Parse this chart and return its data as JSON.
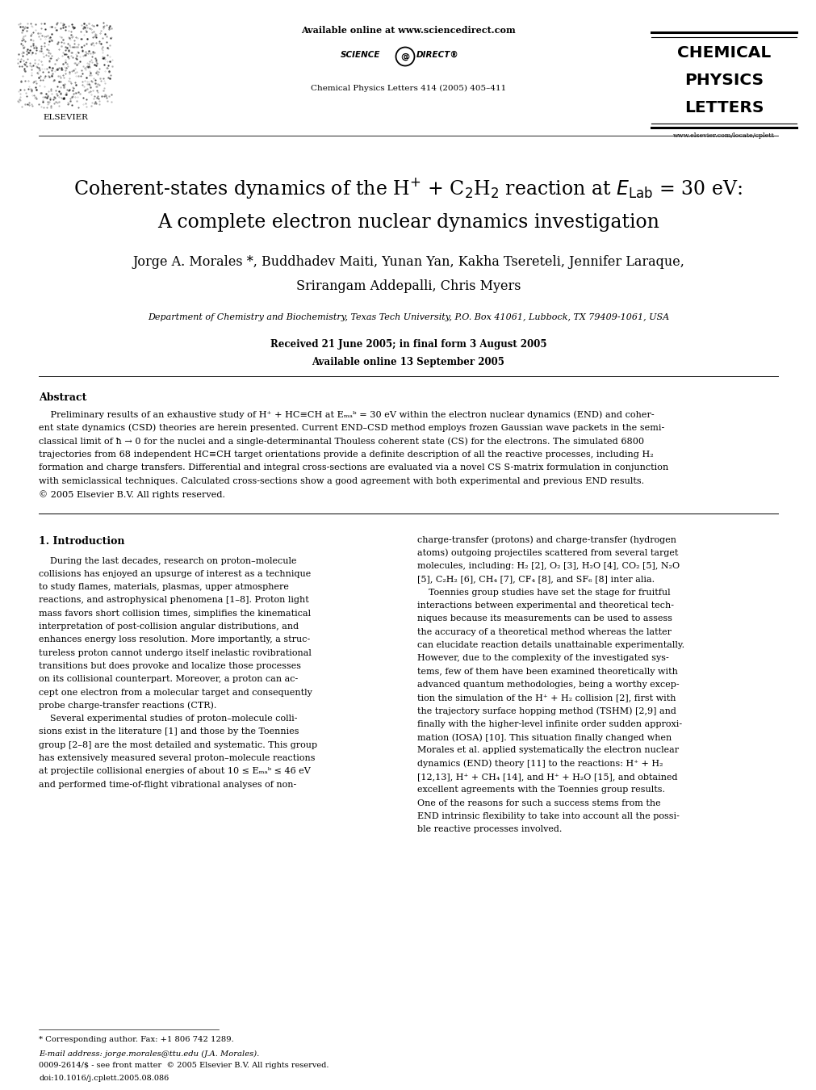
{
  "bg_color": "#ffffff",
  "page_width": 9.92,
  "page_height": 13.23,
  "header_available": "Available online at www.sciencedirect.com",
  "header_scidir": "SCIENCE   DIRECT®",
  "journal_lines": [
    "CHEMICAL",
    "PHYSICS",
    "LETTERS"
  ],
  "journal_info": "Chemical Physics Letters 414 (2005) 405–411",
  "website": "www.elsevier.com/locate/cplett",
  "title_line1": "Coherent-states dynamics of the H$^{+}$ + C$_2$H$_2$ reaction at $E_{\\mathrm{Lab}}$ = 30 eV:",
  "title_line2": "A complete electron nuclear dynamics investigation",
  "authors": "Jorge A. Morales *, Buddhadev Maiti, Yunan Yan, Kakha Tsereteli, Jennifer Laraque,",
  "authors2": "Srirangam Addepalli, Chris Myers",
  "affiliation": "Department of Chemistry and Biochemistry, Texas Tech University, P.O. Box 41061, Lubbock, TX 79409-1061, USA",
  "received": "Received 21 June 2005; in final form 3 August 2005",
  "available_online": "Available online 13 September 2005",
  "abstract_title": "Abstract",
  "abstract_para": "    Preliminary results of an exhaustive study of H⁺ + HC≡CH at Eₘₐᵇ = 30 eV within the electron nuclear dynamics (END) and coherent state dynamics (CSD) theories are herein presented. Current END–CSD method employs frozen Gaussian wave packets in the semi-classical limit of ħ → 0 for the nuclei and a single-determinantal Thouless coherent state (CS) for the electrons. The simulated 6800 trajectories from 68 independent HC≡CH target orientations provide a definite description of all the reactive processes, including H₂ formation and charge transfers. Differential and integral cross-sections are evaluated via a novel CS S-matrix formulation in conjunction with semiclassical techniques. Calculated cross-sections show a good agreement with both experimental and previous END results.",
  "abstract_copy": "© 2005 Elsevier B.V. All rights reserved.",
  "section1": "1. Introduction",
  "col1_lines": [
    "    During the last decades, research on proton–molecule",
    "collisions has enjoyed an upsurge of interest as a technique",
    "to study flames, materials, plasmas, upper atmosphere",
    "reactions, and astrophysical phenomena [1–8]. Proton light",
    "mass favors short collision times, simplifies the kinematical",
    "interpretation of post-collision angular distributions, and",
    "enhances energy loss resolution. More importantly, a struc-",
    "tureless proton cannot undergo itself inelastic rovibrational",
    "transitions but does provoke and localize those processes",
    "on its collisional counterpart. Moreover, a proton can ac-",
    "cept one electron from a molecular target and consequently",
    "probe charge-transfer reactions (CTR).",
    "    Several experimental studies of proton–molecule colli-",
    "sions exist in the literature [1] and those by the Toennies",
    "group [2–8] are the most detailed and systematic. This group",
    "has extensively measured several proton–molecule reactions",
    "at projectile collisional energies of about 10 ≤ Eₘₐᵇ ≤ 46 eV",
    "and performed time-of-flight vibrational analyses of non-"
  ],
  "col2_lines": [
    "charge-transfer (protons) and charge-transfer (hydrogen",
    "atoms) outgoing projectiles scattered from several target",
    "molecules, including: H₂ [2], O₂ [3], H₂O [4], CO₂ [5], N₂O",
    "[5], C₂H₂ [6], CH₄ [7], CF₄ [8], and SF₆ [8] inter alia.",
    "    Toennies group studies have set the stage for fruitful",
    "interactions between experimental and theoretical tech-",
    "niques because its measurements can be used to assess",
    "the accuracy of a theoretical method whereas the latter",
    "can elucidate reaction details unattainable experimentally.",
    "However, due to the complexity of the investigated sys-",
    "tems, few of them have been examined theoretically with",
    "advanced quantum methodologies, being a worthy excep-",
    "tion the simulation of the H⁺ + H₂ collision [2], first with",
    "the trajectory surface hopping method (TSHM) [2,9] and",
    "finally with the higher-level infinite order sudden approxi-",
    "mation (IOSA) [10]. This situation finally changed when",
    "Morales et al. applied systematically the electron nuclear",
    "dynamics (END) theory [11] to the reactions: H⁺ + H₂",
    "[12,13], H⁺ + CH₄ [14], and H⁺ + H₂O [15], and obtained",
    "excellent agreements with the Toennies group results.",
    "One of the reasons for such a success stems from the",
    "END intrinsic flexibility to take into account all the possi-",
    "ble reactive processes involved."
  ],
  "footnote1": "* Corresponding author. Fax: +1 806 742 1289.",
  "footnote2": "E-mail address: jorge.morales@ttu.edu (J.A. Morales).",
  "footer1": "0009-2614/$ - see front matter  © 2005 Elsevier B.V. All rights reserved.",
  "footer2": "doi:10.1016/j.cplett.2005.08.086"
}
